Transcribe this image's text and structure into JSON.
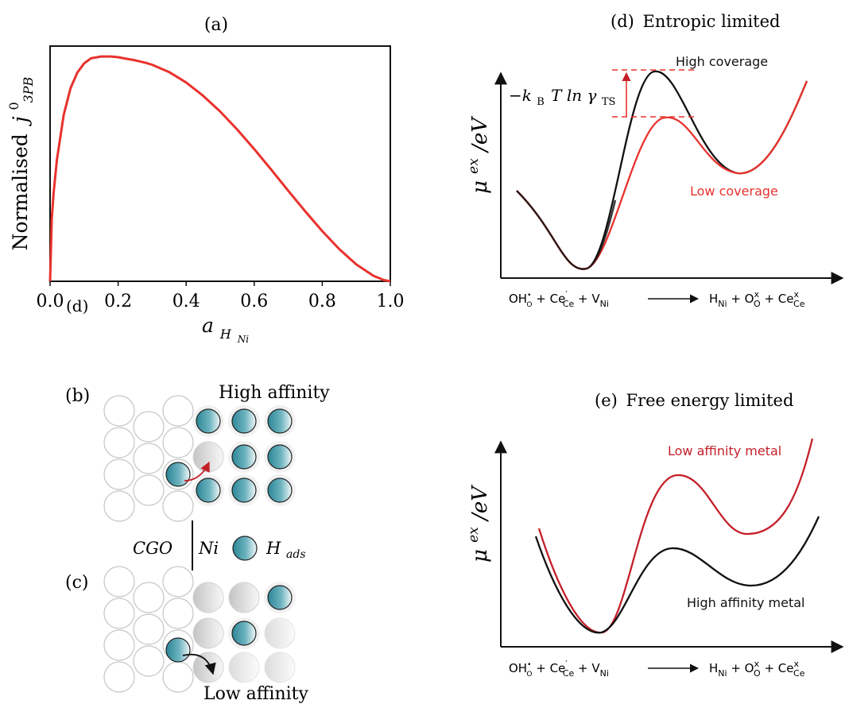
{
  "colors": {
    "red": "#e8322e",
    "dark_red": "#c4202a",
    "black": "#111111",
    "teal": "#3c97a6"
  },
  "panel_a": {
    "label": "(a)",
    "ylabel": "Normalised",
    "ylabel_symbol": "j",
    "ylabel_sup": "0",
    "ylabel_sub": "3PB",
    "xlabel_symbol": "a",
    "xlabel_sub": "H",
    "xlabel_subsub": "Ni",
    "stray_label": "(d)",
    "chart_data": {
      "type": "line",
      "title": "",
      "xlabel": "a_HNi",
      "ylabel": "Normalised j^0_3PB",
      "xlim": [
        0.0,
        1.0
      ],
      "ylim": [
        0.0,
        1.06
      ],
      "xticks": [
        "0.0",
        "0.2",
        "0.4",
        "0.6",
        "0.8",
        "1.0"
      ],
      "grid": false,
      "series": [
        {
          "color": "#e8322e",
          "x": [
            0.0,
            0.005,
            0.01,
            0.02,
            0.04,
            0.06,
            0.08,
            0.1,
            0.12,
            0.15,
            0.18,
            0.2,
            0.22,
            0.25,
            0.28,
            0.3,
            0.35,
            0.4,
            0.45,
            0.5,
            0.55,
            0.6,
            0.65,
            0.7,
            0.75,
            0.8,
            0.85,
            0.9,
            0.95,
            0.98,
            1.0
          ],
          "y": [
            0.0,
            0.279,
            0.392,
            0.548,
            0.749,
            0.87,
            0.94,
            0.982,
            1.005,
            1.013,
            1.013,
            1.01,
            1.004,
            0.996,
            0.985,
            0.976,
            0.943,
            0.896,
            0.836,
            0.765,
            0.684,
            0.596,
            0.503,
            0.408,
            0.315,
            0.226,
            0.145,
            0.076,
            0.025,
            0.006,
            0.0
          ]
        }
      ]
    }
  },
  "panel_b": {
    "label": "(b)",
    "caption": "High affinity"
  },
  "legend_bc": {
    "cgo": "CGO",
    "ni": "Ni",
    "hads_symbol": "H",
    "hads_sub": "ads"
  },
  "panel_c": {
    "label": "(c)",
    "caption": "Low affinity"
  },
  "panel_d": {
    "label": "(d)",
    "title": "Entropic limited",
    "ylabel_mu": "μ",
    "ylabel_sup": "ex",
    "ylabel_unit": "/eV",
    "high_label": "High coverage",
    "low_label": "Low coverage",
    "annotation_prefix": "−k",
    "annotation_sub_b": "B",
    "annotation_mid": "T ln γ",
    "annotation_sub_ts": "TS"
  },
  "panel_e": {
    "label": "(e)",
    "title": "Free energy limited",
    "ylabel_mu": "μ",
    "ylabel_sup": "ex",
    "ylabel_unit": "/eV",
    "low_aff_label": "Low affinity metal",
    "high_aff_label": "High affinity metal"
  },
  "reaction": {
    "oh": "OH",
    "oh_sup": "•",
    "oh_sub": "O",
    "plus1": " + Ce",
    "ce_sup": "′",
    "ce_sub": "Ce",
    "plus2": " + V",
    "v_sub": "Ni",
    "h": "H",
    "h_sub": "Ni",
    "plus3": " + O",
    "o_sup": "x",
    "o_sub": "O",
    "plus4": " + Ce",
    "ce2_sup": "x",
    "ce2_sub": "Ce"
  }
}
